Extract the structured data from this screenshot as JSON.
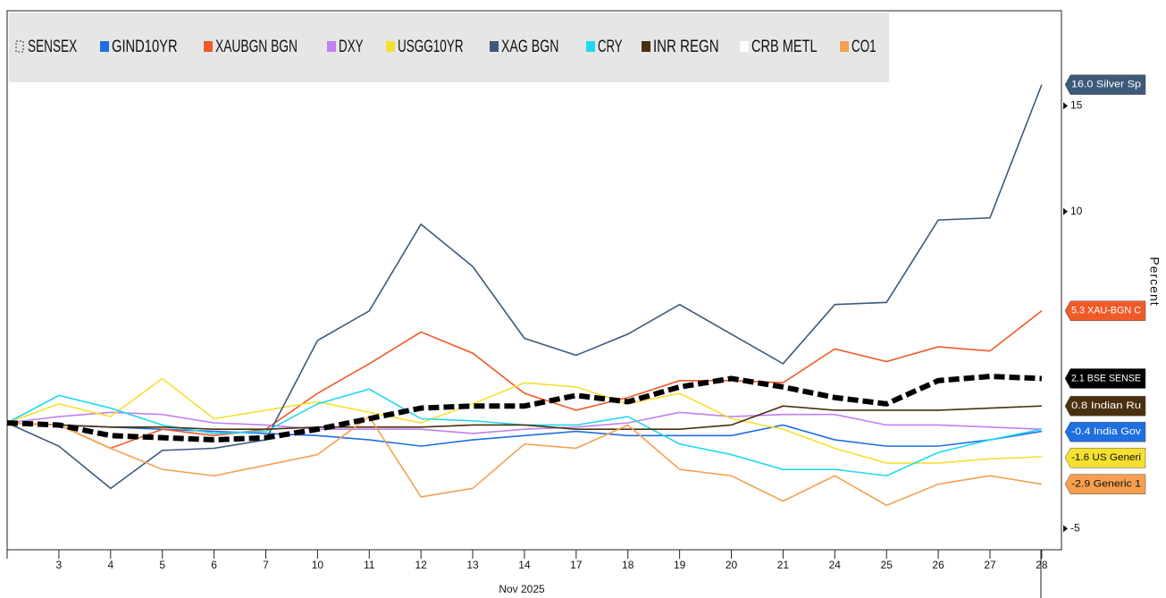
{
  "chart_data": {
    "type": "line",
    "x_label": "Nov 2025",
    "y_label": "Percent",
    "categories": [
      null,
      "3",
      "4",
      "5",
      "6",
      "7",
      "10",
      "11",
      "12",
      "13",
      "14",
      "17",
      "18",
      "19",
      "20",
      "21",
      "24",
      "25",
      "26",
      "27",
      "28"
    ],
    "ylim": [
      -6,
      19.5
    ],
    "yticks": [
      -5,
      10,
      15
    ],
    "series": [
      {
        "name": "SENSEX",
        "color": "#000000",
        "dashed": true,
        "end_label": "2.1  BSE SENSE",
        "values": [
          0,
          -0.1,
          -0.6,
          -0.7,
          -0.8,
          -0.7,
          -0.3,
          0.2,
          0.7,
          0.8,
          0.8,
          1.3,
          1.0,
          1.7,
          2.1,
          1.7,
          1.2,
          0.9,
          2.0,
          2.2,
          2.1
        ]
      },
      {
        "name": "GIND10YR",
        "color": "#1e6fe0",
        "end_label": "-0.4 India Gov",
        "values": [
          0,
          -0.1,
          -0.2,
          -0.3,
          -0.4,
          -0.5,
          -0.6,
          -0.8,
          -1.1,
          -0.8,
          -0.6,
          -0.4,
          -0.6,
          -0.6,
          -0.6,
          -0.1,
          -0.8,
          -1.1,
          -1.1,
          -0.8,
          -0.4
        ]
      },
      {
        "name": "XAUBGN BGN",
        "color": "#f05a28",
        "end_label": "5.3  XAU-BGN C",
        "values": [
          0,
          -0.1,
          -1.2,
          -0.3,
          -0.6,
          -0.3,
          1.4,
          2.8,
          4.3,
          3.3,
          1.4,
          0.6,
          1.2,
          2.0,
          2.0,
          1.9,
          3.5,
          2.9,
          3.6,
          3.4,
          5.3
        ]
      },
      {
        "name": "DXY",
        "color": "#c080f0",
        "values": [
          0,
          0.3,
          0.5,
          0.4,
          0,
          -0.1,
          -0.3,
          -0.3,
          -0.3,
          -0.5,
          -0.3,
          -0.2,
          0,
          0.5,
          0.3,
          0.4,
          0.4,
          -0.1,
          -0.1,
          -0.2,
          -0.3
        ]
      },
      {
        "name": "USGG10YR",
        "color": "#f5e030",
        "end_label": "-1.6 US Generi",
        "values": [
          0,
          0.9,
          0.3,
          2.1,
          0.2,
          0.6,
          1.0,
          0.5,
          0,
          0.9,
          1.9,
          1.7,
          0.9,
          1.4,
          0.2,
          -0.3,
          -1.2,
          -1.9,
          -1.9,
          -1.7,
          -1.6
        ]
      },
      {
        "name": "XAG BGN",
        "color": "#3d5a7a",
        "end_label": "16.0 Silver Sp",
        "values": [
          0,
          -1.1,
          -3.1,
          -1.3,
          -1.2,
          -0.8,
          3.9,
          5.3,
          9.4,
          7.4,
          4.0,
          3.2,
          4.2,
          5.6,
          4.2,
          2.8,
          5.6,
          5.7,
          9.6,
          9.7,
          16.0
        ]
      },
      {
        "name": "CRY",
        "color": "#20d8f0",
        "values": [
          0,
          1.3,
          0.7,
          -0.1,
          -0.5,
          -0.4,
          0.9,
          1.6,
          0.2,
          0.1,
          -0.1,
          -0.1,
          0.3,
          -1.0,
          -1.5,
          -2.2,
          -2.2,
          -2.5,
          -1.4,
          -0.8,
          -0.3
        ]
      },
      {
        "name": "INR REGN",
        "color": "#4a3010",
        "end_label": "0.8  Indian Ru",
        "values": [
          0,
          -0.1,
          -0.2,
          -0.2,
          -0.3,
          -0.3,
          -0.2,
          -0.2,
          -0.2,
          -0.1,
          -0.1,
          -0.3,
          -0.3,
          -0.3,
          -0.1,
          0.8,
          0.6,
          0.6,
          0.6,
          0.7,
          0.8
        ]
      },
      {
        "name": "CRB METL",
        "color": "#ffffff",
        "values": [
          null,
          null,
          null,
          null,
          null,
          null,
          null,
          null,
          null,
          null,
          null,
          null,
          null,
          null,
          null,
          null,
          null,
          null,
          null,
          null,
          null
        ]
      },
      {
        "name": "CO1",
        "color": "#f5a050",
        "end_label": "-2.9 Generic 1",
        "values": [
          0,
          -0.1,
          -1.2,
          -2.2,
          -2.5,
          -2.0,
          -1.5,
          0.3,
          -3.5,
          -3.1,
          -1.0,
          -1.2,
          -0.1,
          -2.2,
          -2.5,
          -3.7,
          -2.5,
          -3.9,
          -2.9,
          -2.5,
          -2.9
        ]
      }
    ]
  }
}
